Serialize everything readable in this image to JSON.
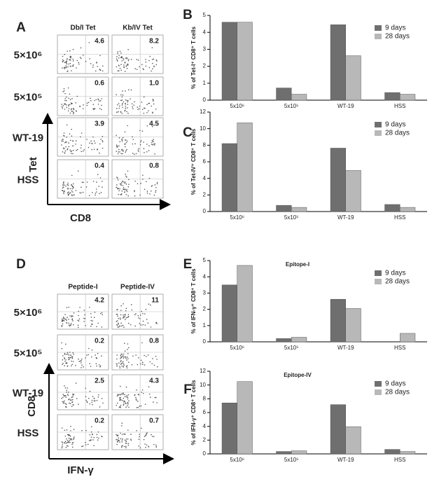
{
  "flow": [
    {
      "label": "A",
      "columns": [
        "Db/I Tet",
        "Kb/IV Tet"
      ],
      "rows": [
        "5×10⁶",
        "5×10⁵",
        "WT-19",
        "HSS"
      ],
      "values": [
        [
          "4.6",
          "8.2"
        ],
        [
          "0.6",
          "1.0"
        ],
        [
          "3.9",
          "4.5"
        ],
        [
          "0.4",
          "0.8"
        ]
      ],
      "y_axis": "Tet",
      "x_axis": "CD8"
    },
    {
      "label": "D",
      "columns": [
        "Peptide-I",
        "Peptide-IV"
      ],
      "rows": [
        "5×10⁶",
        "5×10⁵",
        "WT-19",
        "HSS"
      ],
      "values": [
        [
          "4.2",
          "11"
        ],
        [
          "0.2",
          "0.8"
        ],
        [
          "2.5",
          "4.3"
        ],
        [
          "0.2",
          "0.7"
        ]
      ],
      "y_axis": "CD8",
      "x_axis": "IFN-γ"
    }
  ],
  "chart_data": [
    {
      "type": "bar",
      "label": "B",
      "ylabel": "% of Tet-I⁺ CD8⁺ T cells",
      "categories": [
        "5x10⁶",
        "5x10⁵",
        "WT-19",
        "HSS"
      ],
      "series": [
        {
          "name": "9 days",
          "color": "#6f6f6f",
          "values": [
            4.6,
            0.72,
            4.45,
            0.45
          ]
        },
        {
          "name": "28 days",
          "color": "#b8b8b8",
          "values": [
            4.6,
            0.35,
            2.62,
            0.35
          ]
        }
      ],
      "ylim": [
        0,
        5
      ],
      "yticks": [
        0,
        1,
        2,
        3,
        4,
        5
      ]
    },
    {
      "type": "bar",
      "label": "C",
      "ylabel": "% of Tet-IV⁺ CD8⁺ T cells",
      "categories": [
        "5x10⁶",
        "5x10⁵",
        "WT-19",
        "HSS"
      ],
      "series": [
        {
          "name": "9 days",
          "color": "#6f6f6f",
          "values": [
            8.2,
            0.75,
            7.65,
            0.85
          ]
        },
        {
          "name": "28 days",
          "color": "#b8b8b8",
          "values": [
            10.7,
            0.5,
            4.95,
            0.5
          ]
        }
      ],
      "ylim": [
        0,
        12
      ],
      "yticks": [
        0,
        2,
        4,
        6,
        8,
        10,
        12
      ]
    },
    {
      "type": "bar",
      "label": "E",
      "title": "Epitope-I",
      "ylabel": "% of IFN-γ⁺ CD8⁺ T cells",
      "categories": [
        "5x10⁶",
        "5x10⁵",
        "WT-19",
        "HSS"
      ],
      "series": [
        {
          "name": "9 days",
          "color": "#6f6f6f",
          "values": [
            3.5,
            0.2,
            2.62,
            0
          ]
        },
        {
          "name": "28 days",
          "color": "#b8b8b8",
          "values": [
            4.7,
            0.28,
            2.05,
            0.52
          ]
        }
      ],
      "ylim": [
        0,
        5
      ],
      "yticks": [
        0,
        1,
        2,
        3,
        4,
        5
      ]
    },
    {
      "type": "bar",
      "label": "F",
      "title": "Epitope-IV",
      "ylabel": "% of IFN-γ⁺ CD8⁺ T cells",
      "categories": [
        "5x10⁶",
        "5x10⁵",
        "WT-19",
        "HSS"
      ],
      "series": [
        {
          "name": "9 days",
          "color": "#6f6f6f",
          "values": [
            7.4,
            0.35,
            7.15,
            0.65
          ]
        },
        {
          "name": "28 days",
          "color": "#b8b8b8",
          "values": [
            10.5,
            0.45,
            3.95,
            0.35
          ]
        }
      ],
      "ylim": [
        0,
        12
      ],
      "yticks": [
        0,
        2,
        4,
        6,
        8,
        10,
        12
      ]
    }
  ]
}
